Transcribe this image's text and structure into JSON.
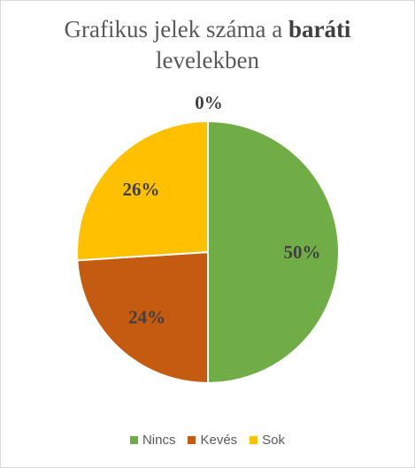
{
  "chart_data": {
    "type": "pie",
    "title_part1": "Grafikus jelek száma a",
    "title_bold": "baráti",
    "title_part2": "levelekben",
    "categories": [
      "Nincs",
      "Kevés",
      "Sok"
    ],
    "values": [
      50,
      24,
      26
    ],
    "data_labels": [
      "50%",
      "24%",
      "26%"
    ],
    "extra_label": "0%",
    "colors": [
      "#70ad47",
      "#c55a11",
      "#ffc000"
    ],
    "legend_position": "bottom"
  }
}
